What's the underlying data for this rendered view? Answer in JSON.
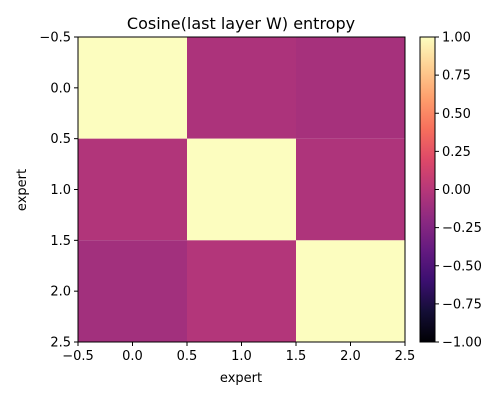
{
  "chart_data": {
    "type": "heatmap",
    "title": "Cosine(last layer W) entropy",
    "xlabel": "expert",
    "ylabel": "expert",
    "xlim": [
      -0.5,
      2.5
    ],
    "ylim": [
      2.5,
      -0.5
    ],
    "x_ticks": [
      "−0.5",
      "0.0",
      "0.5",
      "1.0",
      "1.5",
      "2.0",
      "2.5"
    ],
    "y_ticks": [
      "−0.5",
      "0.0",
      "0.5",
      "1.0",
      "1.5",
      "2.0",
      "2.5"
    ],
    "rows": [
      0,
      1,
      2
    ],
    "cols": [
      0,
      1,
      2
    ],
    "values": [
      [
        1.0,
        -0.05,
        -0.08
      ],
      [
        -0.03,
        1.0,
        -0.04
      ],
      [
        -0.1,
        -0.02,
        1.0
      ]
    ],
    "colormap": "magma",
    "colorbar": {
      "range": [
        -1.0,
        1.0
      ],
      "ticks": [
        "1.00",
        "0.75",
        "0.50",
        "0.25",
        "0.00",
        "−0.25",
        "−0.50",
        "−0.75",
        "−1.00"
      ],
      "tick_values": [
        1.0,
        0.75,
        0.5,
        0.25,
        0.0,
        -0.25,
        -0.5,
        -0.75,
        -1.0
      ]
    },
    "grid": false
  }
}
